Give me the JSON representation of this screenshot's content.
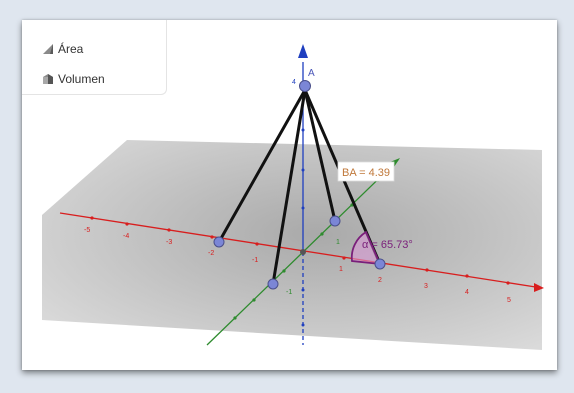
{
  "menu": {
    "items": [
      {
        "label": "Área",
        "icon": "area-icon"
      },
      {
        "label": "Volumen",
        "icon": "volume-icon"
      }
    ]
  },
  "scene": {
    "apex_label": "A",
    "z_top_tick": "4",
    "length_label": "BA = 4.39",
    "angle_label": "α = 65.73°",
    "x_ticks": [
      "-5",
      "-4",
      "-3",
      "-2",
      "-1",
      "1",
      "2",
      "3",
      "4",
      "5"
    ],
    "y_ticks": [
      "-1",
      "1"
    ],
    "colors": {
      "x_axis": "#d81e1e",
      "y_axis": "#2e8b2e",
      "z_axis": "#1f3fbf",
      "angle": "#7a1f7a",
      "length_text": "#c0783a",
      "point": "#7b86d6",
      "plane": "#bdbdbd"
    }
  }
}
